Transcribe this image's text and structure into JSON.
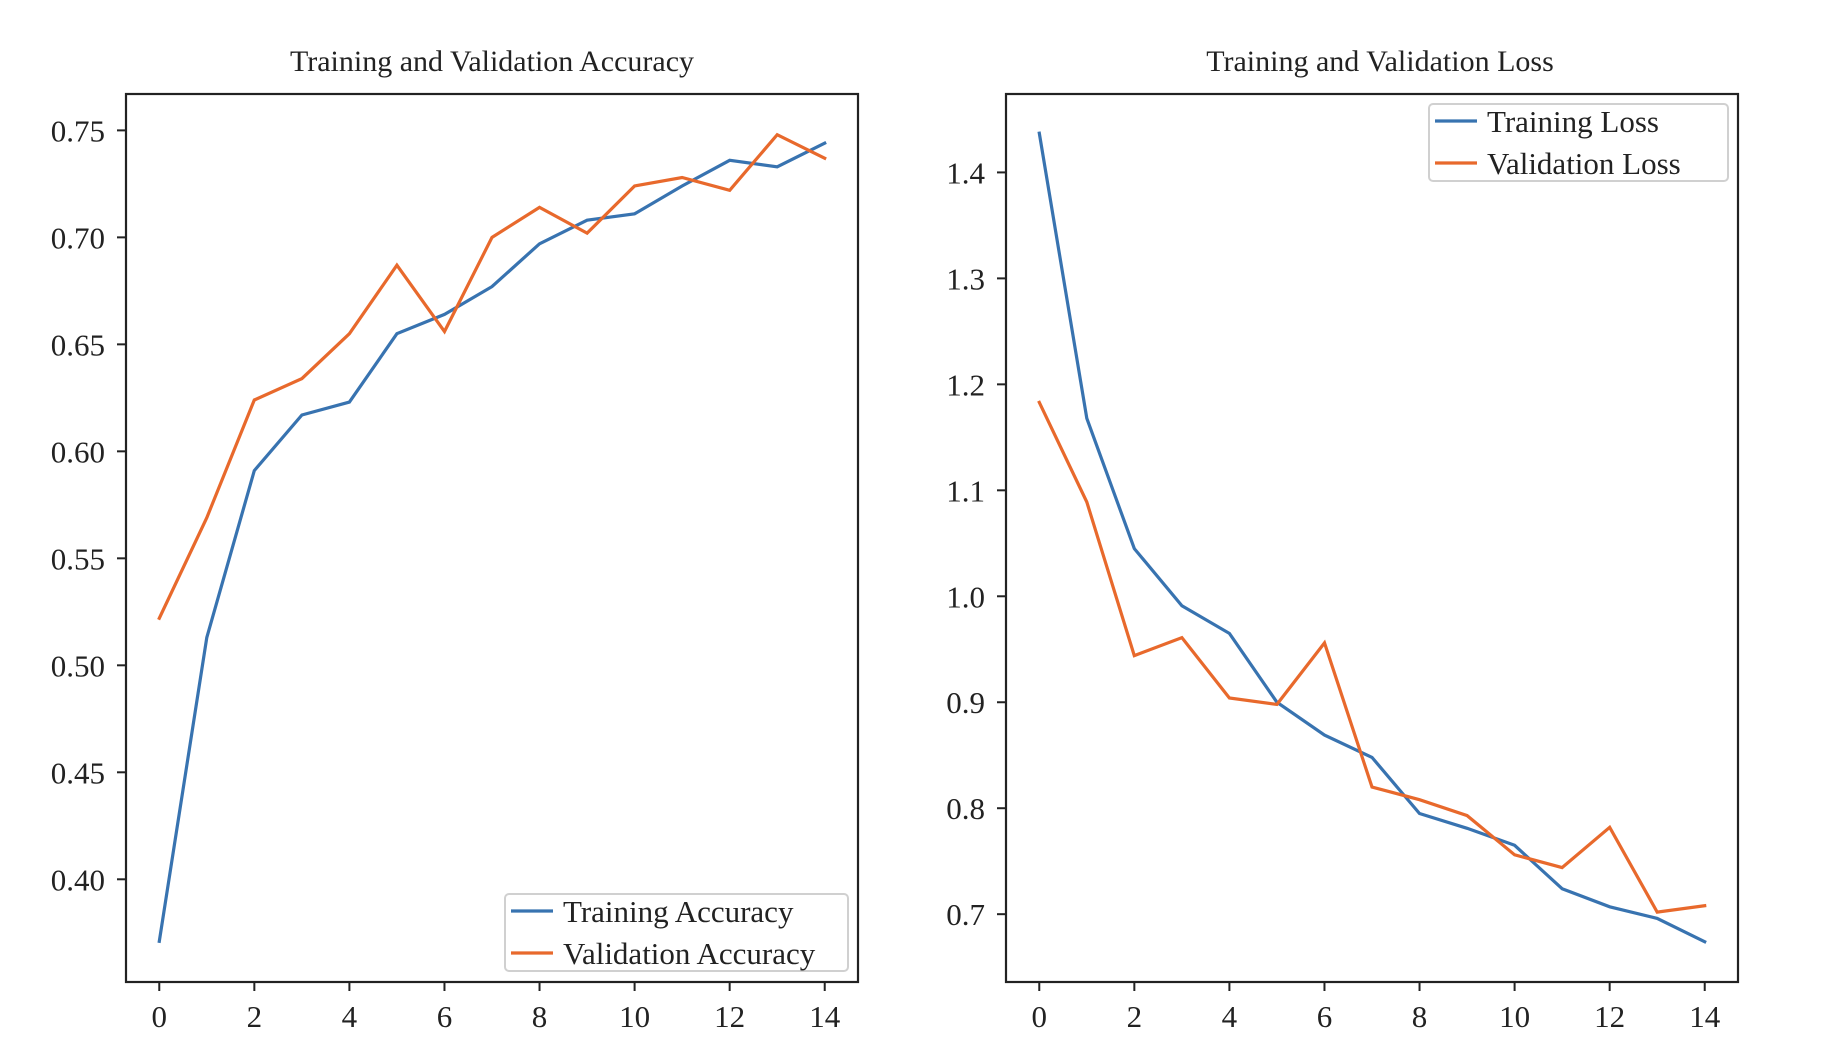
{
  "chart_data": [
    {
      "type": "line",
      "title": "Training and Validation Accuracy",
      "xlabel": "",
      "ylabel": "",
      "x": [
        0,
        1,
        2,
        3,
        4,
        5,
        6,
        7,
        8,
        9,
        10,
        11,
        12,
        13,
        14
      ],
      "xlim": [
        -0.7,
        14.7
      ],
      "ylim": [
        0.352,
        0.767
      ],
      "xticks": [
        0,
        2,
        4,
        6,
        8,
        10,
        12,
        14
      ],
      "xtick_labels": [
        "0",
        "2",
        "4",
        "6",
        "8",
        "10",
        "12",
        "14"
      ],
      "yticks": [
        0.4,
        0.45,
        0.5,
        0.55,
        0.6,
        0.65,
        0.7,
        0.75
      ],
      "ytick_labels": [
        "0.40",
        "0.45",
        "0.50",
        "0.55",
        "0.60",
        "0.65",
        "0.70",
        "0.75"
      ],
      "grid": false,
      "legend_position": "lower-right",
      "series": [
        {
          "name": "Training Accuracy",
          "color": "#3873b0",
          "values": [
            0.371,
            0.513,
            0.591,
            0.617,
            0.623,
            0.655,
            0.664,
            0.677,
            0.697,
            0.708,
            0.711,
            0.724,
            0.736,
            0.733,
            0.744
          ]
        },
        {
          "name": "Validation Accuracy",
          "color": "#e8692c",
          "values": [
            0.522,
            0.569,
            0.624,
            0.634,
            0.655,
            0.687,
            0.656,
            0.7,
            0.714,
            0.702,
            0.724,
            0.728,
            0.722,
            0.748,
            0.737
          ]
        }
      ]
    },
    {
      "type": "line",
      "title": "Training and Validation Loss",
      "xlabel": "",
      "ylabel": "",
      "x": [
        0,
        1,
        2,
        3,
        4,
        5,
        6,
        7,
        8,
        9,
        10,
        11,
        12,
        13,
        14
      ],
      "xlim": [
        -0.7,
        14.7
      ],
      "ylim": [
        0.636,
        1.474
      ],
      "xticks": [
        0,
        2,
        4,
        6,
        8,
        10,
        12,
        14
      ],
      "xtick_labels": [
        "0",
        "2",
        "4",
        "6",
        "8",
        "10",
        "12",
        "14"
      ],
      "yticks": [
        0.7,
        0.8,
        0.9,
        1.0,
        1.1,
        1.2,
        1.3,
        1.4
      ],
      "ytick_labels": [
        "0.7",
        "0.8",
        "0.9",
        "1.0",
        "1.1",
        "1.2",
        "1.3",
        "1.4"
      ],
      "grid": false,
      "legend_position": "upper-right",
      "series": [
        {
          "name": "Training Loss",
          "color": "#3873b0",
          "values": [
            1.437,
            1.168,
            1.045,
            0.991,
            0.965,
            0.9,
            0.869,
            0.848,
            0.795,
            0.781,
            0.765,
            0.724,
            0.707,
            0.696,
            0.674
          ]
        },
        {
          "name": "Validation Loss",
          "color": "#e8692c",
          "values": [
            1.183,
            1.089,
            0.944,
            0.961,
            0.904,
            0.898,
            0.956,
            0.82,
            0.808,
            0.793,
            0.756,
            0.744,
            0.782,
            0.702,
            0.708
          ]
        }
      ]
    }
  ]
}
